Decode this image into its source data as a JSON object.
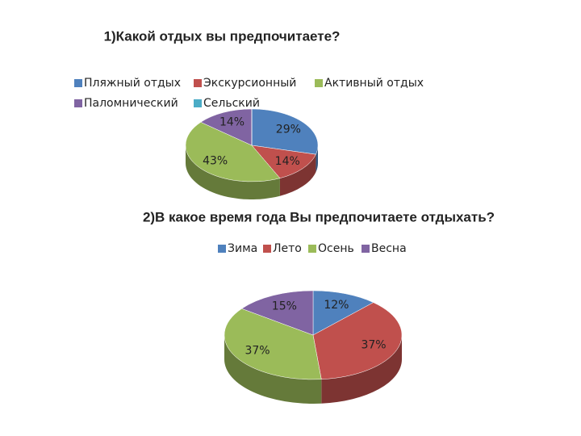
{
  "chart_data": [
    {
      "type": "pie3d",
      "title": "1)Какой отдых вы предпочитаете?",
      "categories": [
        "Пляжный отдых",
        "Экскурсионный",
        "Активный отдых",
        "Паломнический",
        "Сельский"
      ],
      "values": [
        29,
        14,
        43,
        14,
        0
      ],
      "value_labels": [
        "29%",
        "14%",
        "43%",
        "14%",
        null
      ],
      "colors": [
        "#4f81bd",
        "#c0504d",
        "#9bbb59",
        "#8064a2",
        "#4bacc6"
      ]
    },
    {
      "type": "pie3d",
      "title": "2)В какое время года Вы предпочитаете отдыхать?",
      "categories": [
        "Зима",
        "Лето",
        "Осень",
        "Весна"
      ],
      "values": [
        12,
        37,
        37,
        15
      ],
      "value_labels": [
        "12%",
        "37%",
        "37%",
        "15%"
      ],
      "colors": [
        "#4f81bd",
        "#c0504d",
        "#9bbb59",
        "#8064a2"
      ]
    }
  ]
}
